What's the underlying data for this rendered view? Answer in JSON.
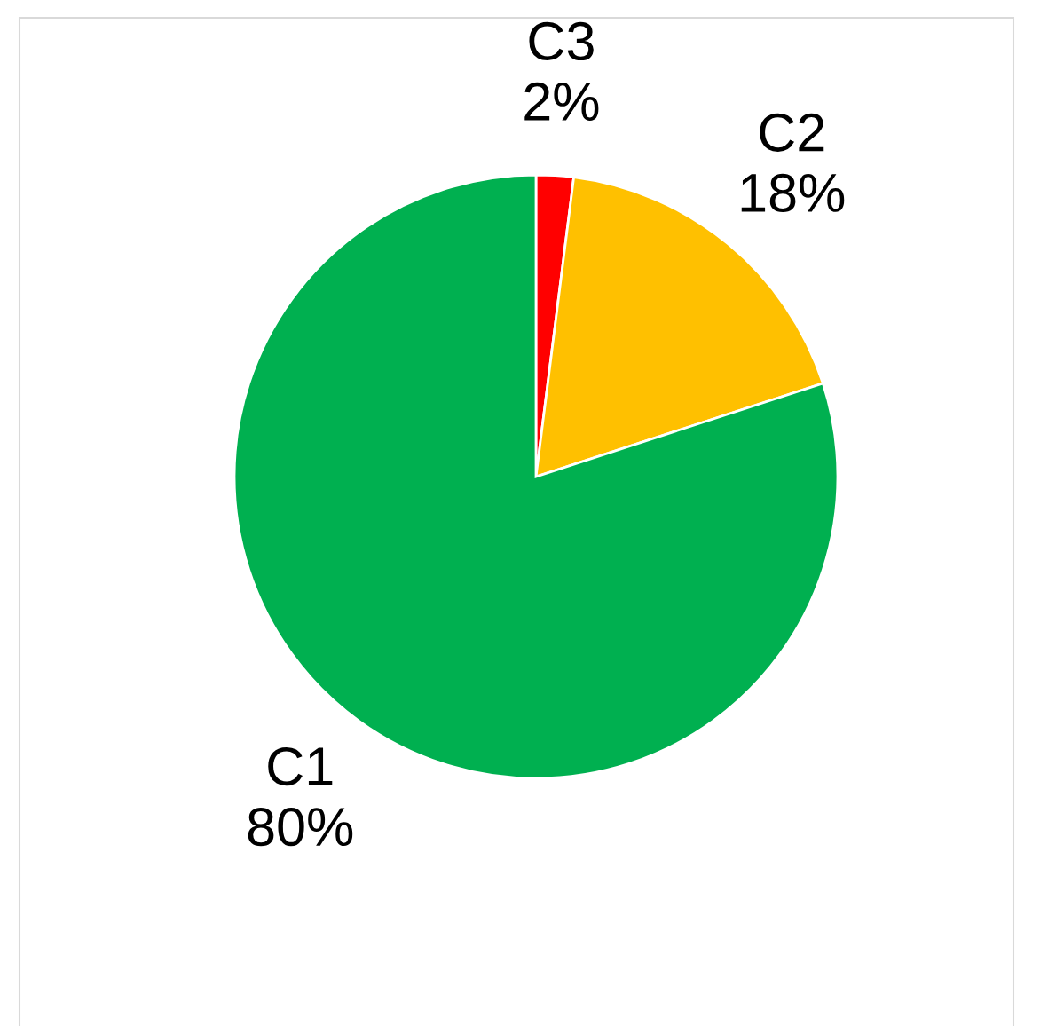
{
  "chart_data": {
    "type": "pie",
    "categories": [
      "C3",
      "C2",
      "C1"
    ],
    "values": [
      2,
      18,
      80
    ],
    "colors": [
      "#ff0000",
      "#ffc000",
      "#00b050"
    ],
    "value_labels": [
      "2%",
      "18%",
      "80%"
    ],
    "legend": false
  }
}
